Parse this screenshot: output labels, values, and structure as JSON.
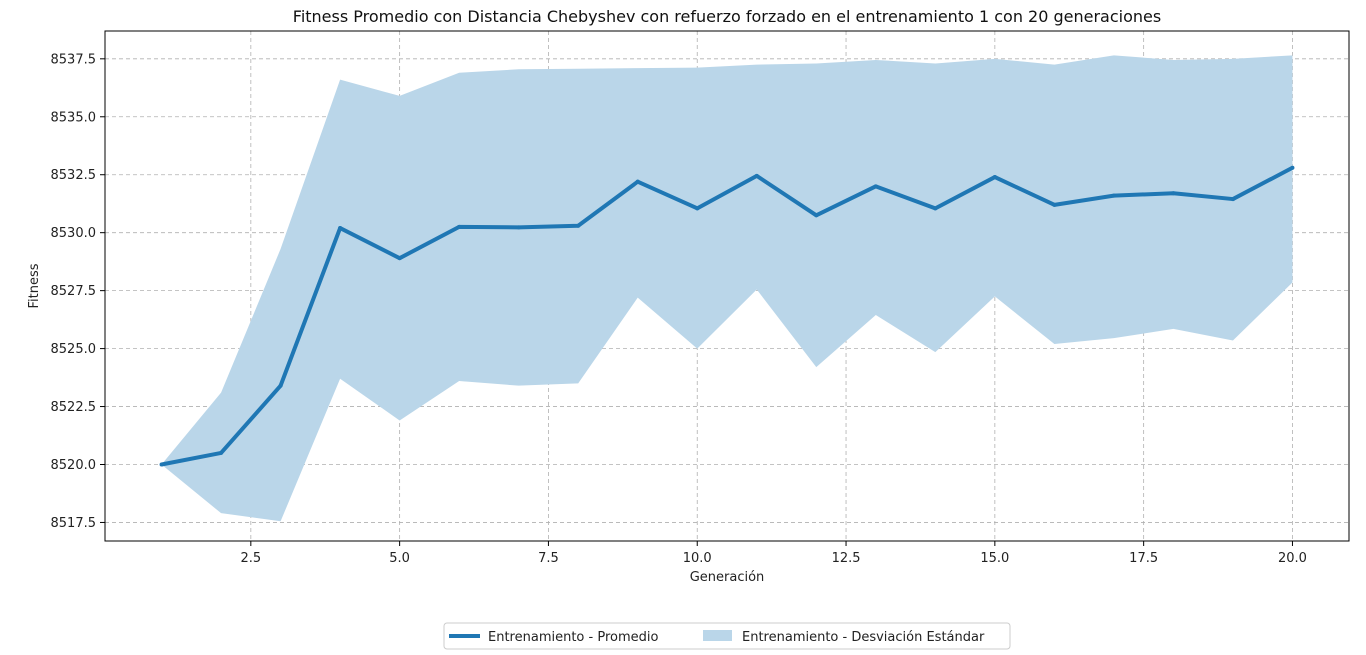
{
  "chart_data": {
    "type": "line",
    "title": "Fitness Promedio con Distancia Chebyshev con refuerzo forzado en el entrenamiento 1 con 20 generaciones",
    "xlabel": "Generación",
    "ylabel": "Fitness",
    "xlim": [
      0.05,
      20.95
    ],
    "ylim": [
      8516.7,
      8538.7
    ],
    "xticks": [
      2.5,
      5.0,
      7.5,
      10.0,
      12.5,
      15.0,
      17.5,
      20.0
    ],
    "xtick_labels": [
      "2.5",
      "5.0",
      "7.5",
      "10.0",
      "12.5",
      "15.0",
      "17.5",
      "20.0"
    ],
    "yticks": [
      8517.5,
      8520.0,
      8522.5,
      8525.0,
      8527.5,
      8530.0,
      8532.5,
      8535.0,
      8537.5
    ],
    "ytick_labels": [
      "8517.5",
      "8520.0",
      "8522.5",
      "8525.0",
      "8527.5",
      "8530.0",
      "8532.5",
      "8535.0",
      "8537.5"
    ],
    "grid": true,
    "legend_position": "bottom-center",
    "x": [
      1,
      2,
      3,
      4,
      5,
      6,
      7,
      8,
      9,
      10,
      11,
      12,
      13,
      14,
      15,
      16,
      17,
      18,
      19,
      20
    ],
    "series": [
      {
        "name": "Entrenamiento  - Promedio",
        "kind": "line",
        "color": "#1f77b4",
        "values": [
          8520.0,
          8520.5,
          8523.4,
          8530.2,
          8528.9,
          8530.25,
          8530.23,
          8530.3,
          8532.2,
          8531.05,
          8532.45,
          8530.75,
          8532.0,
          8531.05,
          8532.4,
          8531.2,
          8531.6,
          8531.7,
          8531.45,
          8532.8
        ]
      },
      {
        "name": "Entrenamiento  - Desviación Estándar",
        "kind": "band",
        "color": "#bad6e9",
        "upper": [
          8520.0,
          8523.1,
          8529.3,
          8536.6,
          8535.9,
          8536.9,
          8537.05,
          8537.07,
          8537.1,
          8537.12,
          8537.25,
          8537.3,
          8537.45,
          8537.3,
          8537.5,
          8537.25,
          8537.65,
          8537.45,
          8537.5,
          8537.65
        ],
        "lower": [
          8520.0,
          8517.9,
          8517.55,
          8523.7,
          8521.9,
          8523.6,
          8523.4,
          8523.5,
          8527.2,
          8525.0,
          8527.55,
          8524.2,
          8526.45,
          8524.85,
          8527.25,
          8525.2,
          8525.45,
          8525.85,
          8525.35,
          8527.85
        ]
      }
    ]
  }
}
